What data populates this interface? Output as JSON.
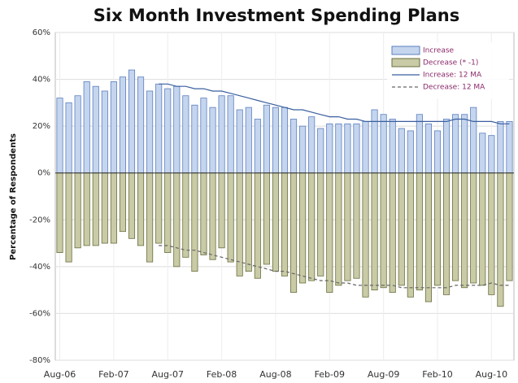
{
  "chart_data": {
    "type": "bar",
    "title": "Six Month Investment Spending Plans",
    "y_label": "Percentage of Respondents",
    "categories": [
      "Aug-06",
      null,
      null,
      null,
      null,
      null,
      "Feb-07",
      null,
      null,
      null,
      null,
      null,
      "Aug-07",
      null,
      null,
      null,
      null,
      null,
      "Feb-08",
      null,
      null,
      null,
      null,
      null,
      "Aug-08",
      null,
      null,
      null,
      null,
      null,
      "Feb-09",
      null,
      null,
      null,
      null,
      null,
      "Aug-09",
      null,
      null,
      null,
      null,
      null,
      "Feb-10",
      null,
      null,
      null,
      null,
      null,
      "Aug-10",
      null,
      null
    ],
    "series": [
      {
        "name": "Increase",
        "type": "bar",
        "color": "#c5d5ee",
        "stroke": "#5b7fbf",
        "values": [
          32,
          30,
          33,
          39,
          37,
          35,
          39,
          41,
          44,
          41,
          35,
          38,
          36,
          37,
          33,
          29,
          32,
          28,
          33,
          33,
          27,
          28,
          23,
          29,
          28,
          28,
          23,
          20,
          24,
          19,
          21,
          21,
          21,
          21,
          22,
          27,
          25,
          23,
          19,
          18,
          25,
          21,
          18,
          23,
          25,
          25,
          28,
          17,
          16,
          22,
          22
        ]
      },
      {
        "name": "Decrease (* -1)",
        "type": "bar",
        "color": "#c9cba6",
        "stroke": "#6a6e3f",
        "values": [
          -34,
          -38,
          -32,
          -31,
          -31,
          -30,
          -30,
          -25,
          -28,
          -31,
          -38,
          -30,
          -34,
          -40,
          -36,
          -42,
          -35,
          -37,
          -32,
          -38,
          -44,
          -42,
          -45,
          -39,
          -42,
          -44,
          -51,
          -47,
          -46,
          -44,
          -51,
          -48,
          -46,
          -45,
          -53,
          -50,
          -49,
          -51,
          -48,
          -53,
          -50,
          -55,
          -48,
          -52,
          -46,
          -49,
          -47,
          -48,
          -52,
          -57,
          -46
        ]
      },
      {
        "name": "Increase: 12 MA",
        "type": "line",
        "color": "#3a5f9f",
        "dashed": false,
        "values": [
          null,
          null,
          null,
          null,
          null,
          null,
          null,
          null,
          null,
          null,
          null,
          38,
          38,
          37,
          37,
          36,
          36,
          35,
          35,
          34,
          33,
          32,
          31,
          30,
          29,
          28,
          27,
          27,
          26,
          25,
          24,
          24,
          23,
          23,
          22,
          22,
          22,
          22,
          22,
          22,
          22,
          22,
          22,
          22,
          23,
          23,
          22,
          22,
          22,
          21,
          21
        ]
      },
      {
        "name": "Decrease: 12 MA",
        "type": "line",
        "color": "#666666",
        "dashed": true,
        "values": [
          null,
          null,
          null,
          null,
          null,
          null,
          null,
          null,
          null,
          null,
          null,
          -31,
          -31,
          -32,
          -33,
          -33,
          -34,
          -35,
          -36,
          -37,
          -38,
          -39,
          -40,
          -41,
          -42,
          -42,
          -43,
          -44,
          -45,
          -46,
          -46,
          -47,
          -47,
          -48,
          -48,
          -48,
          -48,
          -48,
          -49,
          -49,
          -49,
          -49,
          -49,
          -49,
          -48,
          -48,
          -48,
          -48,
          -47,
          -48,
          -48
        ]
      }
    ],
    "ylim": [
      -80,
      60
    ],
    "yticks": [
      {
        "value": -80,
        "label": "-80%"
      },
      {
        "value": -60,
        "label": "-60%"
      },
      {
        "value": -40,
        "label": "-40%"
      },
      {
        "value": -20,
        "label": "-20%"
      },
      {
        "value": 0,
        "label": "0%"
      },
      {
        "value": 20,
        "label": "20%"
      },
      {
        "value": 40,
        "label": "40%"
      },
      {
        "value": 60,
        "label": "60%"
      }
    ],
    "grid": true,
    "legend": "top-right"
  }
}
